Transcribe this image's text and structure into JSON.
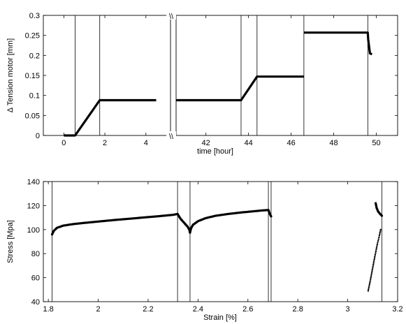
{
  "chart_data": [
    {
      "type": "line",
      "xlabel": "time [hour]",
      "ylabel": "Δ Tension motor [mm]",
      "broken_axis": true,
      "x_segments": [
        {
          "xlim": [
            -1,
            5.2
          ],
          "xticks": [
            "0",
            "2",
            "4"
          ],
          "xtick_values": [
            0,
            2,
            4
          ]
        },
        {
          "xlim": [
            40.6,
            51
          ],
          "xticks": [
            "42",
            "44",
            "46",
            "48",
            "50"
          ],
          "xtick_values": [
            42,
            44,
            46,
            48,
            50
          ]
        }
      ],
      "ylim": [
        0,
        0.3
      ],
      "yticks": [
        "0",
        "0.05",
        "0.1",
        "0.15",
        "0.2",
        "0.25",
        "0.3"
      ],
      "ytick_values": [
        0,
        0.05,
        0.1,
        0.15,
        0.2,
        0.25,
        0.3
      ],
      "vertical_lines_x": [
        0.55,
        1.75,
        43.65,
        44.4,
        46.6,
        49.6
      ],
      "series": [
        {
          "segment": 0,
          "x": [
            0,
            0.55,
            1.75,
            4.5
          ],
          "y": [
            0,
            0,
            0.088,
            0.088
          ]
        },
        {
          "segment": 1,
          "x": [
            40.6,
            43.65,
            44.4,
            46.6
          ],
          "y": [
            0.088,
            0.088,
            0.147,
            0.147
          ]
        },
        {
          "segment": 1,
          "x": [
            46.6,
            49.6,
            49.62,
            49.7,
            49.8
          ],
          "y": [
            0.257,
            0.257,
            0.24,
            0.205,
            0.203
          ]
        }
      ]
    },
    {
      "type": "scatter",
      "xlabel": "Strain [%]",
      "ylabel": "Stress [Mpa]",
      "xlim": [
        1.78,
        3.2
      ],
      "ylim": [
        40,
        140
      ],
      "xticks": [
        "1.8",
        "2",
        "2.2",
        "2.4",
        "2.6",
        "2.8",
        "3",
        "3.2"
      ],
      "xtick_values": [
        1.8,
        2.0,
        2.2,
        2.4,
        2.6,
        2.8,
        3.0,
        3.2
      ],
      "yticks": [
        "40",
        "60",
        "80",
        "100",
        "120",
        "140"
      ],
      "ytick_values": [
        40,
        60,
        80,
        100,
        120,
        140
      ],
      "vertical_lines_x": [
        1.815,
        2.318,
        2.368,
        2.682,
        2.693,
        3.137
      ],
      "series": [
        {
          "x": [
            1.815,
            1.822,
            1.835,
            1.86,
            1.9,
            1.95,
            2.0,
            2.05,
            2.1,
            2.15,
            2.2,
            2.25,
            2.3,
            2.318
          ],
          "y": [
            96,
            99,
            101.5,
            103.3,
            104.6,
            105.7,
            106.7,
            107.7,
            108.6,
            109.5,
            110.4,
            111.3,
            112.3,
            113
          ]
        },
        {
          "x": [
            2.318,
            2.33,
            2.345,
            2.358,
            2.365,
            2.368
          ],
          "y": [
            113,
            109,
            105.5,
            102.5,
            100,
            97.5
          ]
        },
        {
          "x": [
            2.368,
            2.372,
            2.38,
            2.4,
            2.43,
            2.47,
            2.52,
            2.57,
            2.62,
            2.66,
            2.682
          ],
          "y": [
            97.5,
            101,
            104,
            107,
            109.5,
            111.5,
            113,
            114.2,
            115.2,
            116,
            116.3
          ]
        },
        {
          "x": [
            2.682,
            2.688,
            2.693
          ],
          "y": [
            116.3,
            113,
            111
          ]
        },
        {
          "x": [
            3.082,
            3.09,
            3.1,
            3.11,
            3.12,
            3.127,
            3.132
          ],
          "y": [
            49,
            57,
            68,
            79,
            89,
            95,
            100
          ]
        },
        {
          "x": [
            3.112,
            3.116,
            3.122,
            3.13,
            3.137
          ],
          "y": [
            122,
            118,
            115,
            113,
            111.5
          ]
        }
      ]
    }
  ]
}
